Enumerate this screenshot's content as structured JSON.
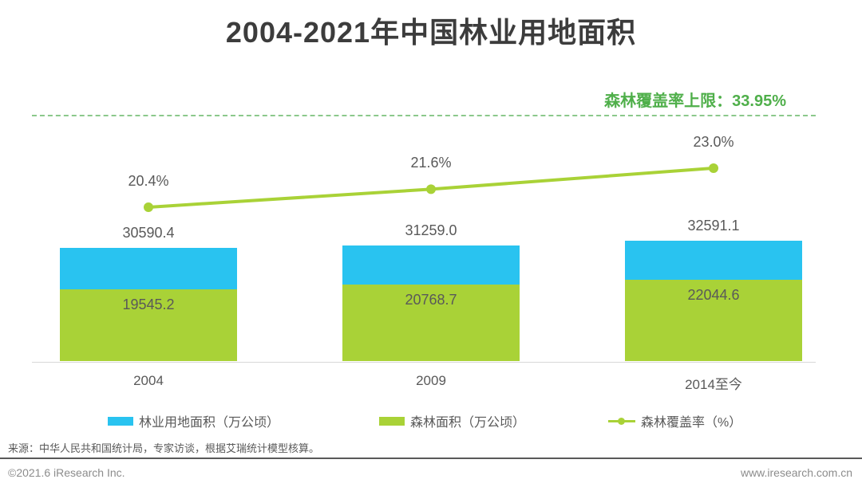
{
  "title": "2004-2021年中国林业用地面积",
  "cap_annotation": {
    "label": "森林覆盖率上限：33.95%",
    "value_pct": 33.95
  },
  "colors": {
    "forestry_land_blue": "#29C3F0",
    "forest_green": "#A9D237",
    "cap_text_green": "#4FAF4A",
    "cap_dash_green": "#8BC88B",
    "title_text": "#3C3C3C",
    "label_gray": "#595959"
  },
  "chart_data": {
    "type": "bar+line",
    "title": "2004-2021年中国林业用地面积",
    "categories": [
      "2004",
      "2009",
      "2014至今"
    ],
    "series": [
      {
        "name": "林业用地面积（万公顷）",
        "type": "bar",
        "values": [
          30590.4,
          31259.0,
          32591.1
        ]
      },
      {
        "name": "森林面积（万公顷）",
        "type": "bar",
        "values": [
          19545.2,
          20768.7,
          22044.6
        ]
      },
      {
        "name": "森林覆盖率（%）",
        "type": "line",
        "values": [
          20.4,
          21.6,
          23.0
        ]
      }
    ],
    "annotations": {
      "coverage_cap_label": "森林覆盖率上限：33.95%",
      "coverage_cap_pct": 33.95
    },
    "labels": {
      "totals": [
        "30590.4",
        "31259.0",
        "32591.1"
      ],
      "forest": [
        "19545.2",
        "20768.7",
        "22044.6"
      ],
      "coverage": [
        "20.4%",
        "21.6%",
        "23.0%"
      ]
    },
    "xlabel": "",
    "ylabel": "",
    "grid": false,
    "legend_position": "bottom"
  },
  "legend": {
    "items": [
      {
        "label": "林业用地面积（万公顷）",
        "marker": "bar",
        "color": "#29C3F0"
      },
      {
        "label": "森林面积（万公顷）",
        "marker": "bar",
        "color": "#A9D237"
      },
      {
        "label": "森林覆盖率（%）",
        "marker": "line",
        "color": "#A9D237"
      }
    ]
  },
  "footer": {
    "source": "来源：中华人民共和国统计局，专家访谈，根据艾瑞统计模型核算。",
    "copyright": "©2021.6 iResearch Inc.",
    "website": "www.iresearch.com.cn"
  }
}
